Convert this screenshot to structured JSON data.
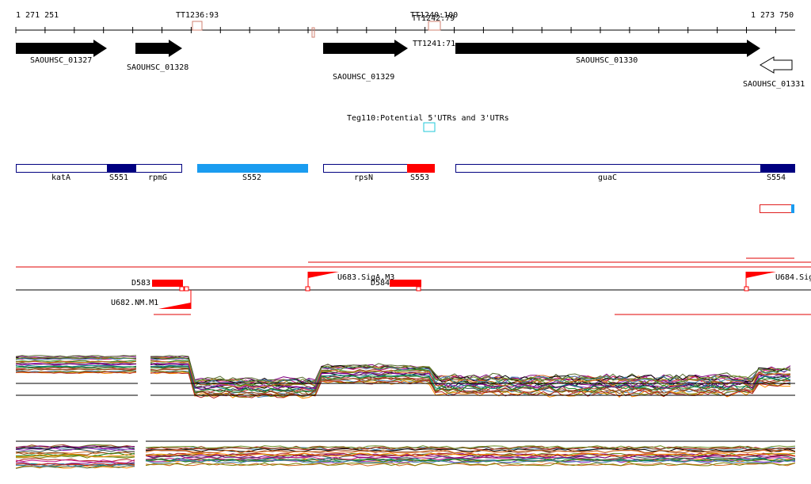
{
  "ruler": {
    "start": "1 271 251",
    "end": "1 273 750"
  },
  "terminators": [
    "TT1236:93",
    "TT1240:100",
    "TT1242:79",
    "TT1241:71"
  ],
  "genes": [
    "SAOUHSC_01327",
    "SAOUHSC_01328",
    "SAOUHSC_01329",
    "SAOUHSC_01330",
    "SAOUHSC_01331"
  ],
  "teg": "Teg110:Potential 5'UTRs and 3'UTRs",
  "features": [
    "katA",
    "S551",
    "rpmG",
    "S552",
    "rpsN",
    "S553",
    "guaC",
    "S554"
  ],
  "promoters": [
    "D583",
    "U683.SigA.M3",
    "D584",
    "U682.NM.M1",
    "U684.Sig"
  ]
}
